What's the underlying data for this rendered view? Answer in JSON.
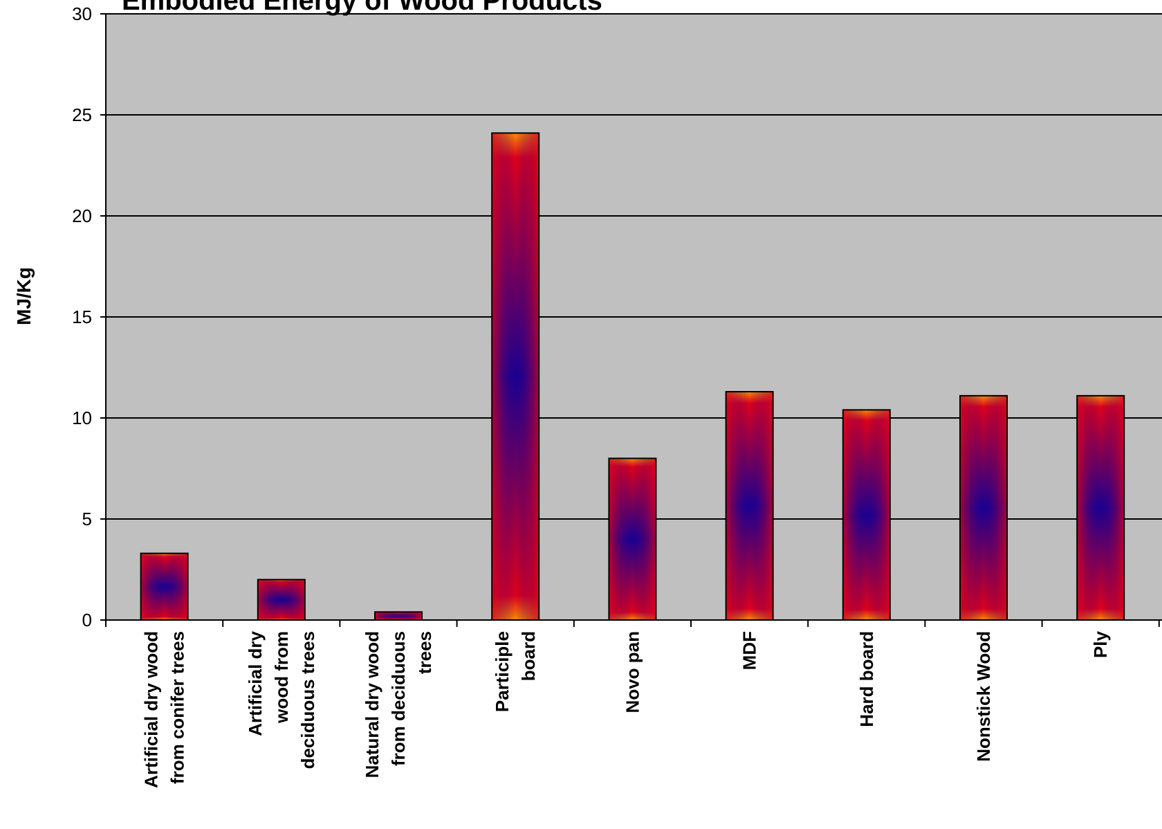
{
  "chart_data": {
    "type": "bar",
    "title": "Embodied Energy of Wood Products",
    "ylabel": "MJ/Kg",
    "xlabel": "",
    "ylim": [
      0,
      30
    ],
    "yticks": [
      0,
      5,
      10,
      15,
      20,
      25,
      30
    ],
    "grid": true,
    "categories": [
      [
        "Artificial dry wood",
        "from conifer trees"
      ],
      [
        "Artificial dry",
        "wood from",
        "deciduous trees"
      ],
      [
        "Natural dry wood",
        "from deciduous",
        "trees"
      ],
      [
        "Participle",
        "board"
      ],
      [
        "Novo pan"
      ],
      [
        "MDF"
      ],
      [
        "Hard board"
      ],
      [
        "Nonstick Wood"
      ],
      [
        "Ply"
      ]
    ],
    "values": [
      3.3,
      2.0,
      0.4,
      24.1,
      8.0,
      11.3,
      10.4,
      11.1,
      11.1
    ],
    "colors": {
      "plot_background": "#c0c0c0",
      "bar_edge": "#ff8c00",
      "bar_mid": "#e0001a",
      "bar_center": "#1a0090"
    }
  }
}
